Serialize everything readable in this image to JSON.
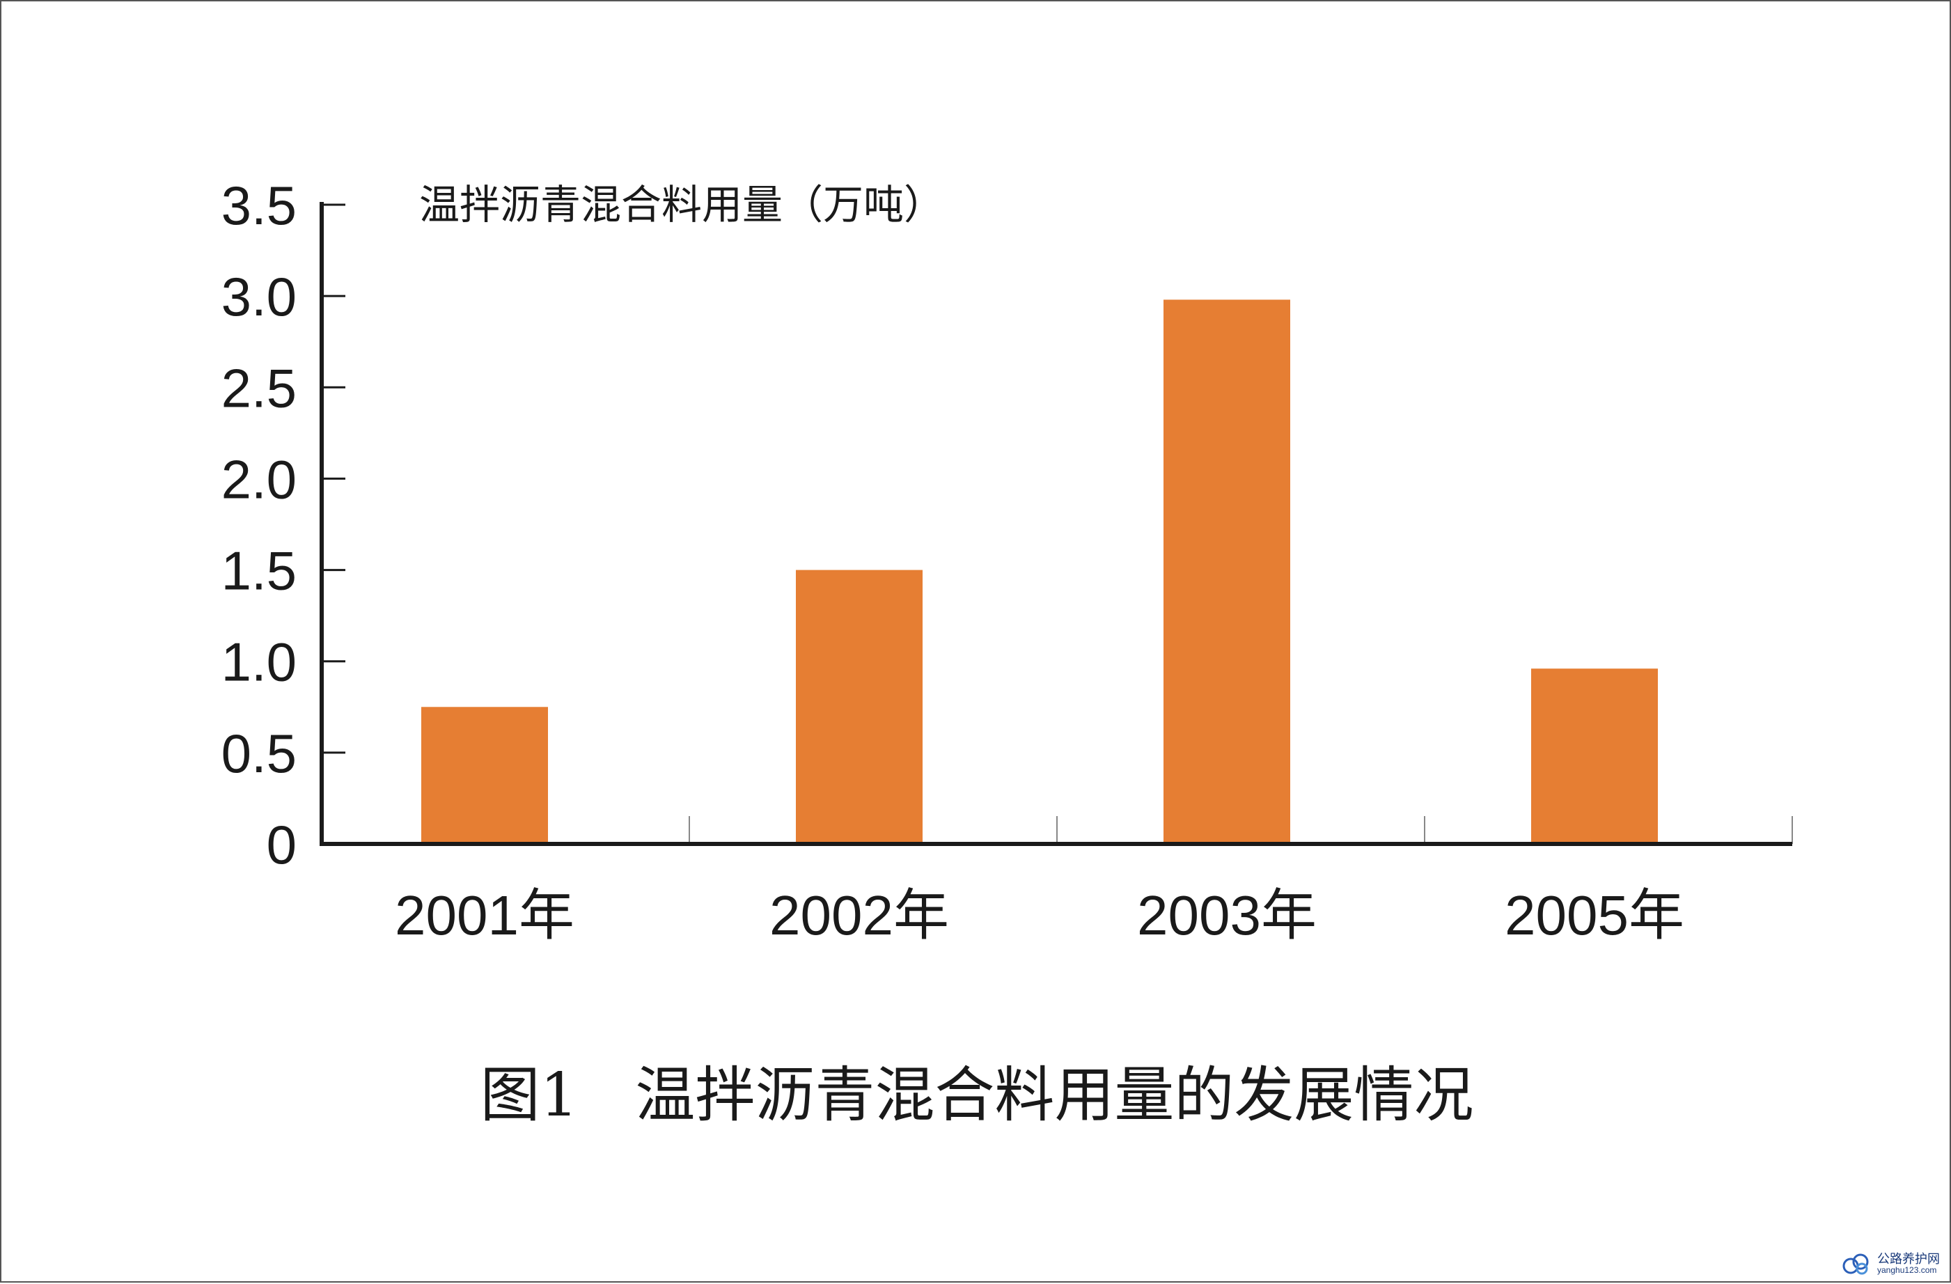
{
  "chart_data": {
    "type": "bar",
    "title": "",
    "ylabel": "温拌沥青混合料用量（万吨）",
    "xlabel": "",
    "categories": [
      "2001年",
      "2002年",
      "2003年",
      "2005年"
    ],
    "values": [
      0.75,
      1.5,
      2.98,
      0.96
    ],
    "ylim": [
      0,
      3.5
    ],
    "yticks": [
      0,
      0.5,
      1.0,
      1.5,
      2.0,
      2.5,
      3.0,
      3.5
    ],
    "ytick_labels": [
      "0",
      "0.5",
      "1.0",
      "1.5",
      "2.0",
      "2.5",
      "3.0",
      "3.5"
    ],
    "bar_color": "#E67E33",
    "axis_color": "#1a1a1a",
    "grid": false,
    "legend": "none"
  },
  "caption": "图1   温拌沥青混合料用量的发展情况",
  "watermark": {
    "name": "公路养护网",
    "url": "yanghu123.com"
  }
}
